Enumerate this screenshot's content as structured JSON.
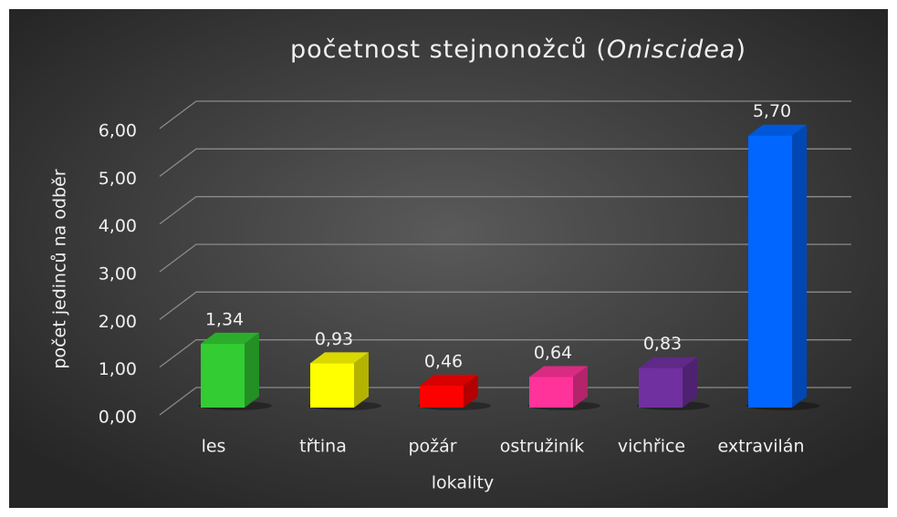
{
  "chart_data": {
    "type": "bar3d",
    "title": [
      "početnost stejnonožců (",
      "Oniscidea",
      ")"
    ],
    "x_label": "lokality",
    "y_label": "počet jedinců na odběr",
    "categories": [
      "les",
      "třtina",
      "požár",
      "ostružiník",
      "vichřice",
      "extravilán"
    ],
    "values": [
      1.34,
      0.93,
      0.46,
      0.64,
      0.83,
      5.7
    ],
    "value_labels": [
      "1,34",
      "0,93",
      "0,46",
      "0,64",
      "0,83",
      "5,70"
    ],
    "colors": [
      "#33cc33",
      "#ffff00",
      "#ff0000",
      "#ff3399",
      "#7030a0",
      "#0066ff"
    ],
    "ylim": [
      0,
      6
    ],
    "yticks": [
      {
        "value": 0,
        "label": "0,00"
      },
      {
        "value": 1,
        "label": "1,00"
      },
      {
        "value": 2,
        "label": "2,00"
      },
      {
        "value": 3,
        "label": "3,00"
      },
      {
        "value": 4,
        "label": "4,00"
      },
      {
        "value": 5,
        "label": "5,00"
      },
      {
        "value": 6,
        "label": "6,00"
      }
    ],
    "grid": true
  }
}
